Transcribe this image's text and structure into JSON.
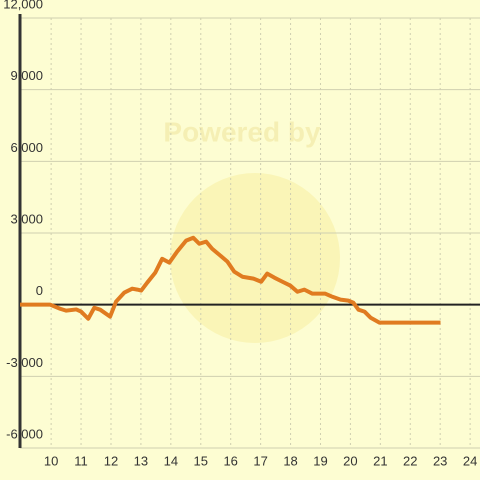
{
  "chart_data": {
    "type": "line",
    "watermark": "Powered by",
    "x": [
      8.96,
      9.97,
      10.3,
      10.5,
      10.84,
      11.0,
      11.24,
      11.44,
      11.64,
      11.97,
      12.17,
      12.44,
      12.71,
      12.88,
      13.01,
      13.21,
      13.48,
      13.71,
      13.95,
      14.21,
      14.51,
      14.75,
      14.95,
      15.18,
      15.38,
      15.62,
      15.89,
      16.12,
      16.39,
      16.76,
      17.02,
      17.22,
      17.46,
      17.73,
      17.99,
      18.23,
      18.46,
      18.73,
      19.16,
      19.4,
      19.67,
      19.93,
      20.1,
      20.27,
      20.47,
      20.67,
      20.97,
      21.34,
      23.01
    ],
    "series": [
      {
        "color": "#e07b20",
        "values": [
          0,
          0,
          -170,
          -250,
          -200,
          -290,
          -590,
          -130,
          -210,
          -500,
          130,
          500,
          670,
          630,
          590,
          920,
          1340,
          1920,
          1760,
          2220,
          2680,
          2800,
          2550,
          2640,
          2340,
          2090,
          1800,
          1380,
          1170,
          1090,
          960,
          1300,
          1130,
          960,
          800,
          540,
          630,
          460,
          460,
          330,
          210,
          170,
          80,
          -210,
          -290,
          -540,
          -750,
          -750,
          -750
        ]
      }
    ],
    "xlim": [
      8.96,
      24.33
    ],
    "xticks": [
      10,
      11,
      12,
      13,
      14,
      15,
      16,
      17,
      18,
      19,
      20,
      21,
      22,
      23,
      24
    ],
    "ylim": [
      -6000,
      12000
    ],
    "yticks": [
      {
        "value": -6000,
        "label": "-6,000"
      },
      {
        "value": -3000,
        "label": "-3,000"
      },
      0,
      {
        "value": 3000,
        "label": "3,000"
      },
      {
        "value": 6000,
        "label": "6,000"
      },
      {
        "value": 9000,
        "label": "9,000"
      },
      {
        "value": 12000,
        "label": "12,000"
      }
    ],
    "grid": true
  }
}
